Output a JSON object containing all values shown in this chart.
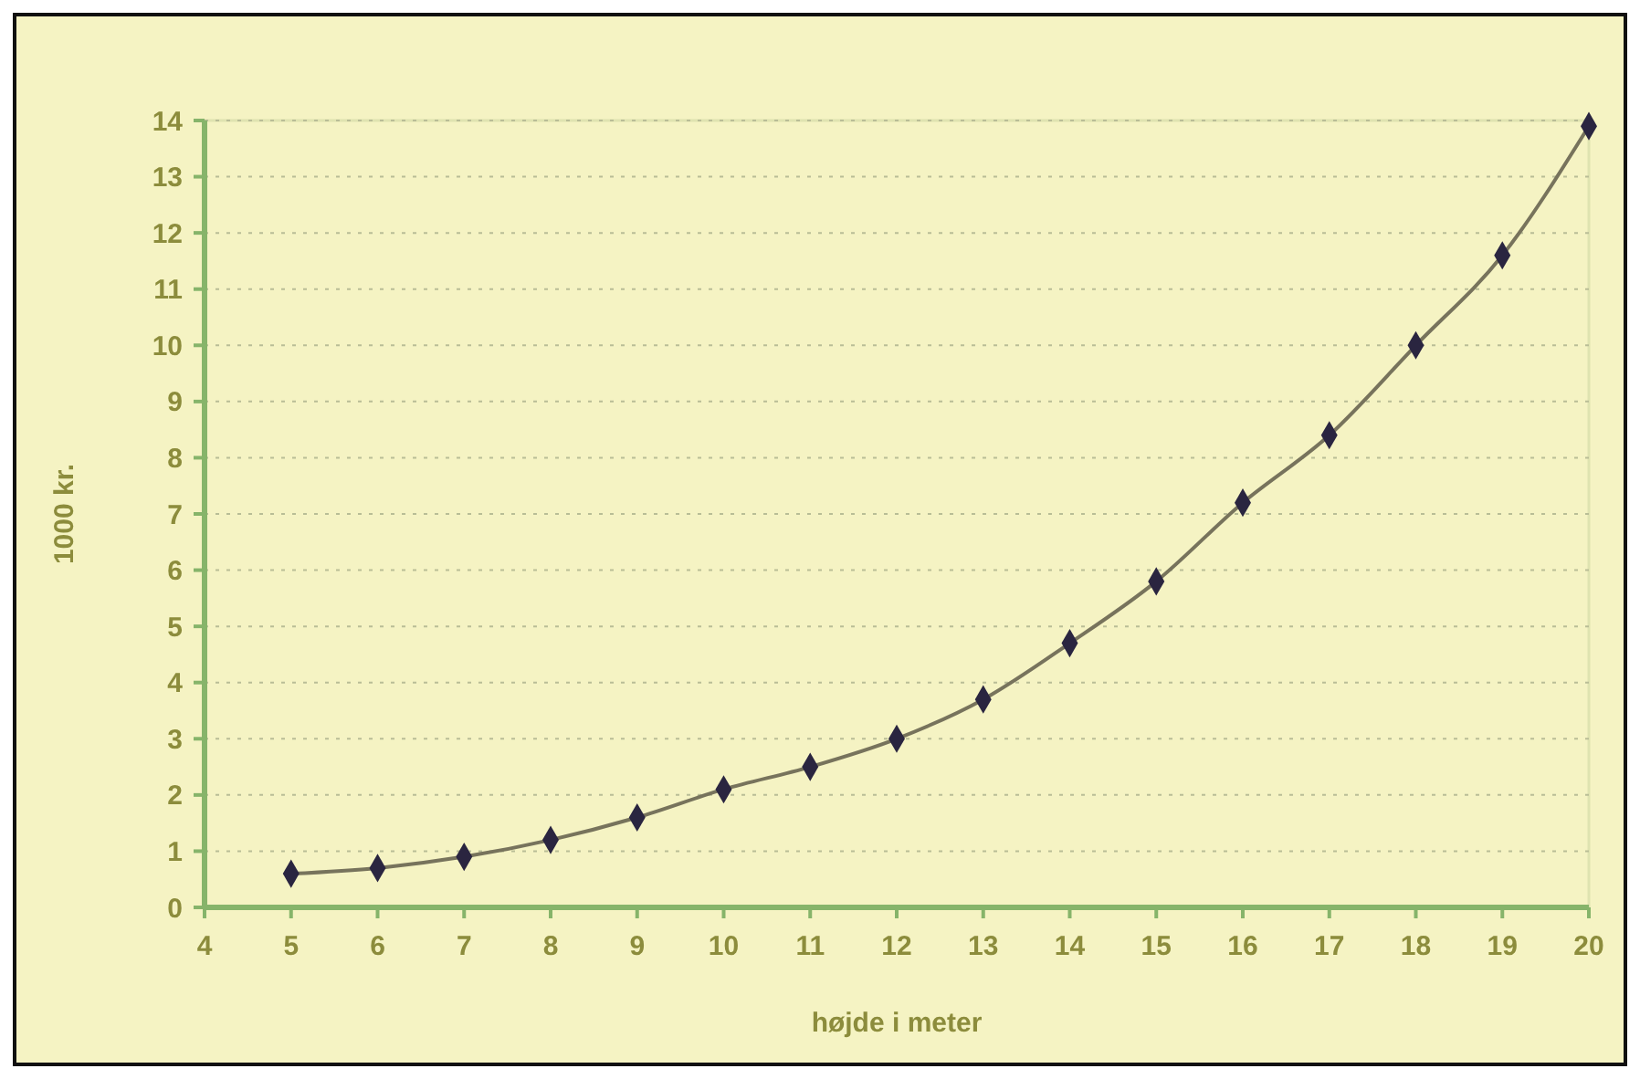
{
  "chart_data": {
    "type": "line",
    "xlabel": "højde i meter",
    "ylabel": "1000 kr.",
    "x": [
      5,
      6,
      7,
      8,
      9,
      10,
      11,
      12,
      13,
      14,
      15,
      16,
      17,
      18,
      19,
      20
    ],
    "series": [
      {
        "color": "#2a2540",
        "values": [
          0.6,
          0.7,
          0.9,
          1.2,
          1.6,
          2.1,
          2.5,
          3.0,
          3.7,
          4.7,
          5.8,
          7.2,
          8.4,
          10.0,
          11.6,
          13.9
        ]
      }
    ],
    "xlim": [
      4,
      20
    ],
    "xticks": [
      4,
      5,
      6,
      7,
      8,
      9,
      10,
      11,
      12,
      13,
      14,
      15,
      16,
      17,
      18,
      19,
      20
    ],
    "ylim": [
      0,
      14
    ],
    "yticks": [
      0,
      1,
      2,
      3,
      4,
      5,
      6,
      7,
      8,
      9,
      10,
      11,
      12,
      13,
      14
    ],
    "grid": "y",
    "marker": "diamond",
    "line_style": "solid"
  }
}
